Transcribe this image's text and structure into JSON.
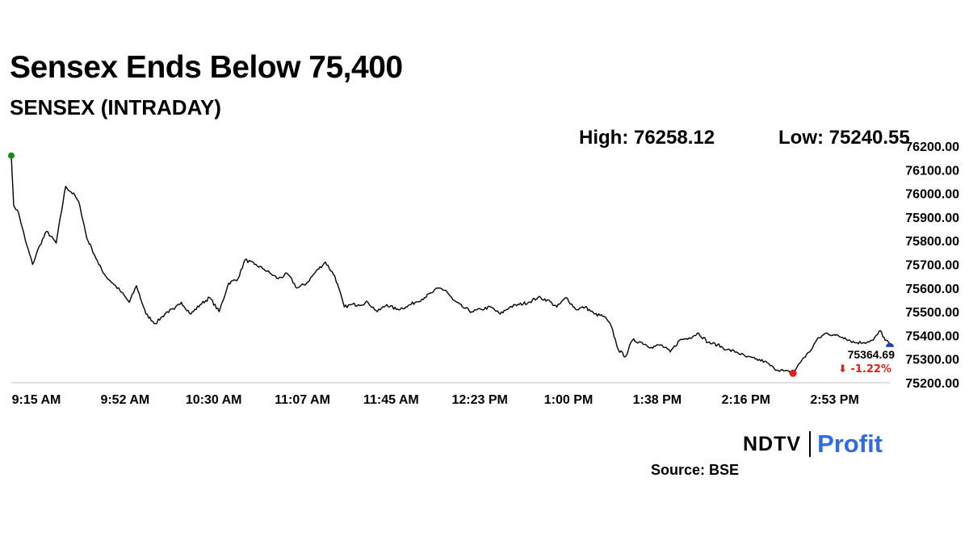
{
  "header": {
    "title": "Sensex Ends Below 75,400",
    "subtitle": "SENSEX (INTRADAY)",
    "high_text": "High: 76258.12",
    "low_text": "Low: 75240.55"
  },
  "branding": {
    "ndtv": "NDTV",
    "profit": "Profit",
    "profit_color": "#2e6be6"
  },
  "source": "Source: BSE",
  "chart_data": {
    "type": "line",
    "title": "SENSEX (INTRADAY)",
    "ylim": [
      75200,
      76200
    ],
    "ytick_labels": [
      "76200.00",
      "76100.00",
      "76000.00",
      "75900.00",
      "75800.00",
      "75700.00",
      "75600.00",
      "75500.00",
      "75400.00",
      "75300.00",
      "75200.00"
    ],
    "yticks": [
      76200,
      76100,
      76000,
      75900,
      75800,
      75700,
      75600,
      75500,
      75400,
      75300,
      75200
    ],
    "xtick_labels": [
      "9:15 AM",
      "9:52 AM",
      "10:30 AM",
      "11:07 AM",
      "11:45 AM",
      "12:23 PM",
      "1:00 PM",
      "1:38 PM",
      "2:16 PM",
      "2:53 PM"
    ],
    "grid": false,
    "line_color": "#000000",
    "series": [
      {
        "x": [
          "9:15",
          "9:16",
          "9:18",
          "9:21",
          "9:24",
          "9:27",
          "9:30",
          "9:34",
          "9:38",
          "9:42",
          "9:44",
          "9:47",
          "9:49",
          "9:52",
          "9:55",
          "9:58",
          "10:01",
          "10:05",
          "10:08",
          "10:12",
          "10:16",
          "10:19",
          "10:21",
          "10:24",
          "10:27",
          "10:31",
          "10:35",
          "10:39",
          "10:43",
          "10:47",
          "10:51",
          "10:54",
          "10:58",
          "11:02",
          "11:05",
          "11:08",
          "11:12",
          "11:16",
          "11:20",
          "11:24",
          "11:28",
          "11:32",
          "11:36",
          "11:39",
          "11:42",
          "11:46",
          "11:50",
          "11:54",
          "11:58",
          "12:02",
          "12:06",
          "12:10",
          "12:13",
          "12:16",
          "12:19",
          "12:22",
          "12:26",
          "12:30",
          "12:34",
          "12:38",
          "12:42",
          "12:46",
          "12:50",
          "12:54",
          "12:58",
          "13:02",
          "13:06",
          "13:10",
          "13:14",
          "13:18",
          "13:22",
          "13:26",
          "13:29",
          "13:32",
          "13:35",
          "13:38",
          "13:42",
          "13:46",
          "13:50",
          "13:54",
          "13:58",
          "14:02",
          "14:06",
          "14:10",
          "14:14",
          "14:18",
          "14:22",
          "14:26",
          "14:30",
          "14:34",
          "14:38",
          "14:42",
          "14:46",
          "14:50",
          "14:53",
          "14:56",
          "15:00",
          "15:04",
          "15:08",
          "15:12",
          "15:16",
          "15:20",
          "15:23",
          "15:25",
          "15:27"
        ],
        "y": [
          76160,
          75950,
          75920,
          75800,
          75700,
          75780,
          75840,
          75790,
          76030,
          75990,
          75950,
          75810,
          75770,
          75700,
          75650,
          75620,
          75590,
          75540,
          75610,
          75490,
          75450,
          75480,
          75500,
          75510,
          75540,
          75490,
          75530,
          75560,
          75500,
          75620,
          75640,
          75720,
          75700,
          75680,
          75660,
          75640,
          75660,
          75600,
          75620,
          75670,
          75710,
          75650,
          75520,
          75530,
          75530,
          75540,
          75500,
          75530,
          75510,
          75520,
          75540,
          75560,
          75580,
          75600,
          75590,
          75550,
          75520,
          75500,
          75510,
          75520,
          75490,
          75520,
          75530,
          75540,
          75560,
          75550,
          75520,
          75560,
          75510,
          75520,
          75490,
          75480,
          75440,
          75340,
          75310,
          75380,
          75370,
          75350,
          75360,
          75330,
          75380,
          75390,
          75410,
          75370,
          75360,
          75340,
          75330,
          75310,
          75300,
          75290,
          75260,
          75250,
          75240,
          75300,
          75330,
          75380,
          75410,
          75400,
          75390,
          75370,
          75370,
          75380,
          75420,
          75380,
          75364.69
        ]
      }
    ],
    "start_marker_color": "#1a8a1a",
    "low_marker_color": "#e02020",
    "end_marker_color": "#1f3fb5",
    "end_label": "75364.69",
    "change_label": "⬇ -1.22%",
    "change_color": "#e02020"
  }
}
